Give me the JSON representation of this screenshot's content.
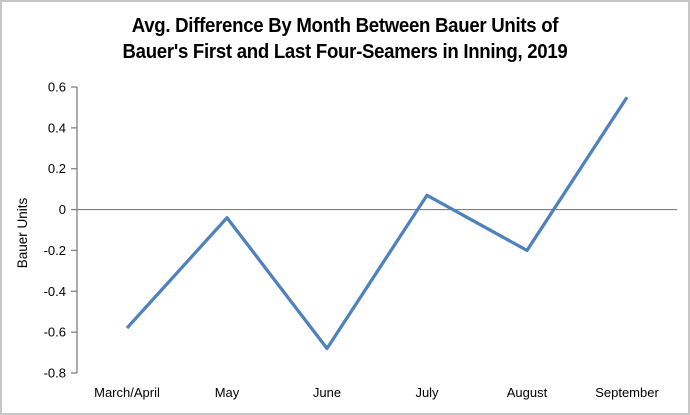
{
  "window": {
    "background": "#ffffff",
    "border_color": "#c6c6c6"
  },
  "chart_data": {
    "type": "line",
    "title": "Avg. Difference By Month Between Bauer Units of Bauer's First and Last Four-Seamers in Inning, 2019",
    "title_lines": [
      "Avg. Difference By Month Between Bauer Units of",
      "Bauer's First and Last Four-Seamers in Inning, 2019"
    ],
    "categories": [
      "March/April",
      "May",
      "June",
      "July",
      "August",
      "September"
    ],
    "values": [
      -0.58,
      -0.04,
      -0.68,
      0.07,
      -0.2,
      0.55
    ],
    "xlabel": "",
    "ylabel": "Bauer Units",
    "ylim": [
      -0.8,
      0.6
    ],
    "yticks": [
      0.6,
      0.4,
      0.2,
      0,
      -0.2,
      -0.4,
      -0.6,
      -0.8
    ],
    "ytick_labels": [
      "0.6",
      "0.4",
      "0.2",
      "0",
      "-0.2",
      "-0.4",
      "-0.6",
      "-0.8"
    ],
    "grid": "zero-line-only",
    "legend": "none",
    "series_color": "#4f81bd",
    "axis_color": "#808080",
    "text_color": "#000000"
  }
}
